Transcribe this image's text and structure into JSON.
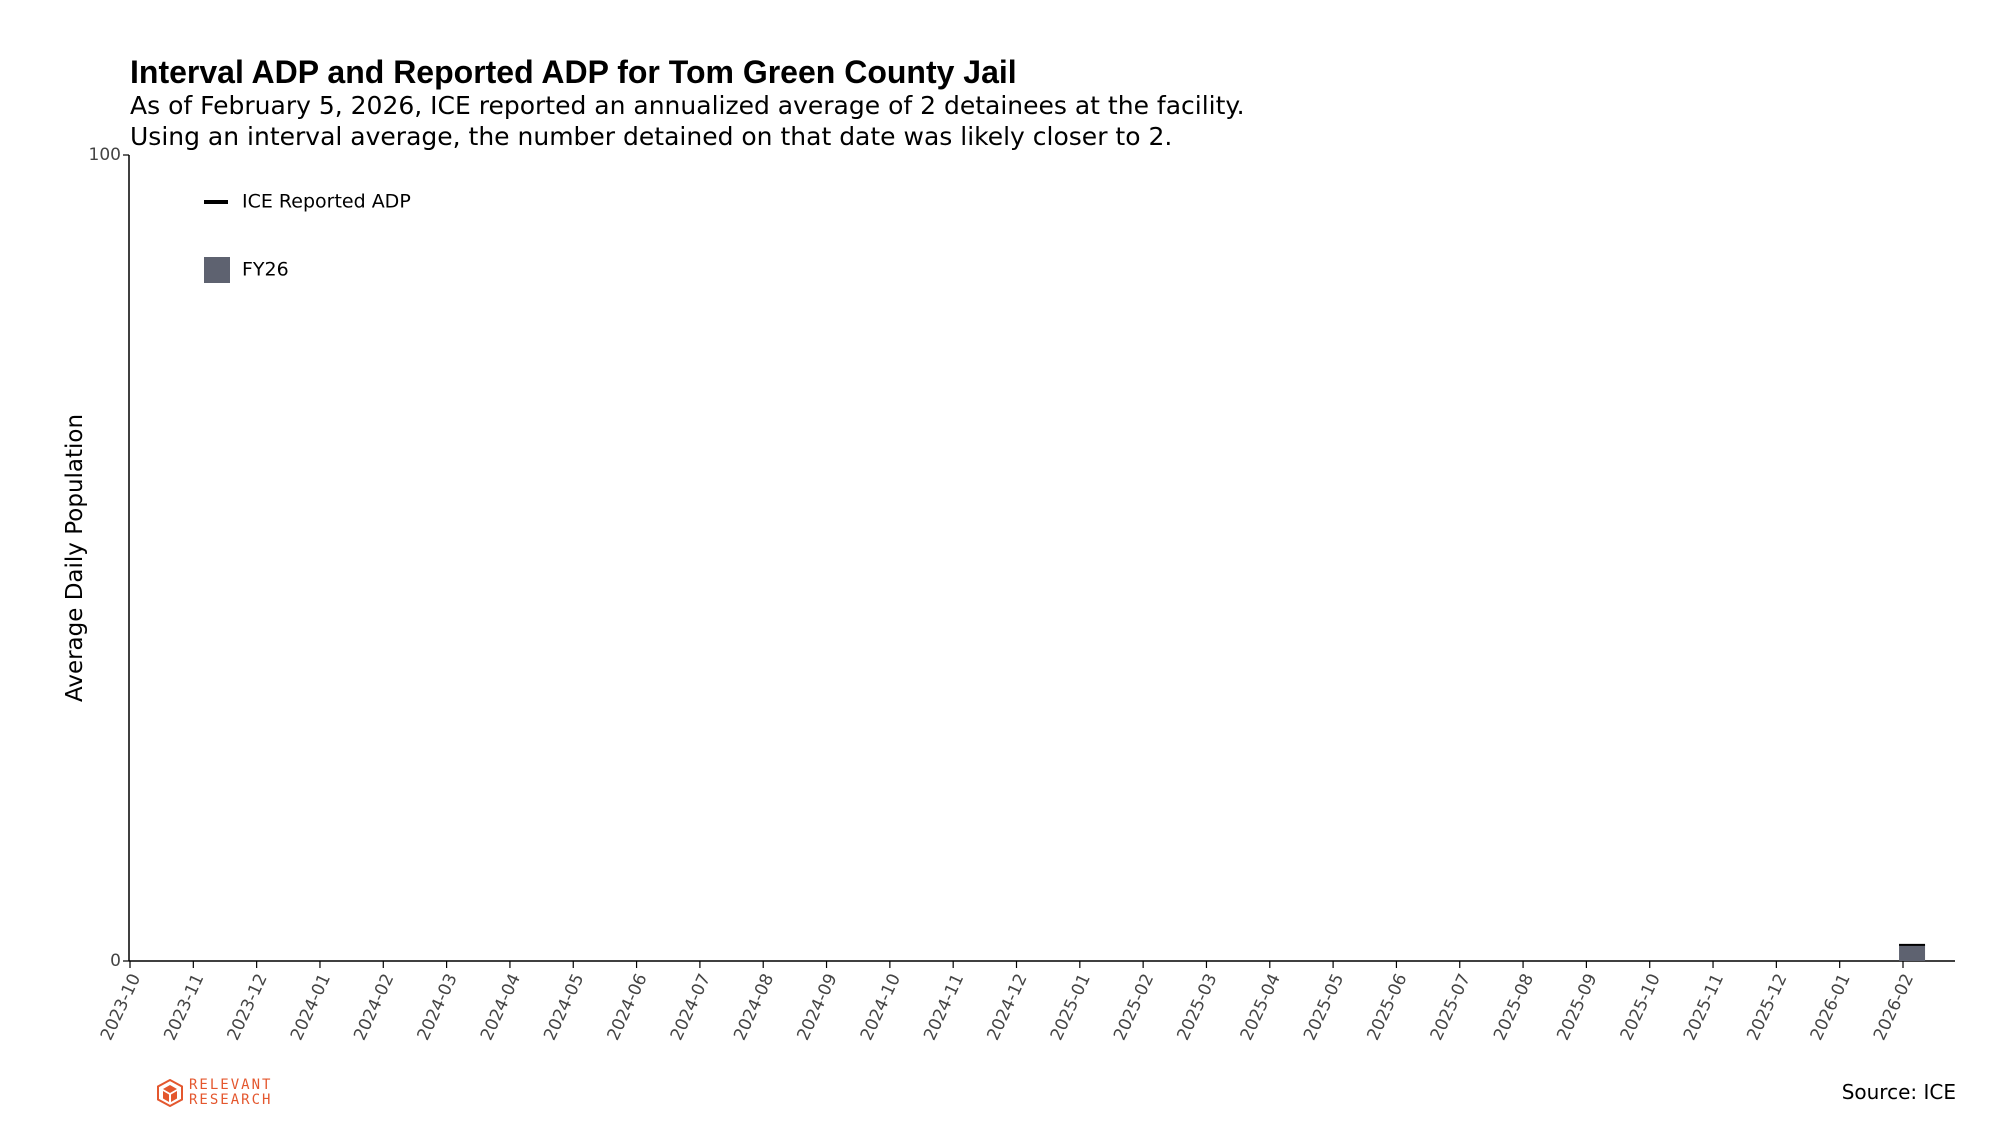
{
  "header": {
    "title": "Interval ADP and Reported ADP for Tom Green County Jail",
    "subtitle_line1": "As of February 5, 2026, ICE reported an annualized average of 2 detainees at the facility.",
    "subtitle_line2": "Using an interval average, the number detained on that date was likely closer to 2."
  },
  "footer": {
    "logo_line1": "RELEVANT",
    "logo_line2": "RESEARCH",
    "source": "Source: ICE"
  },
  "chart_data": {
    "type": "bar",
    "ylabel": "Average Daily Population",
    "xlabel": "",
    "ylim": [
      0,
      100
    ],
    "yticks": [
      0,
      100
    ],
    "x_tick_labels": [
      "2023-10",
      "2023-11",
      "2023-12",
      "2024-01",
      "2024-02",
      "2024-03",
      "2024-04",
      "2024-05",
      "2024-06",
      "2024-07",
      "2024-08",
      "2024-09",
      "2024-10",
      "2024-11",
      "2024-12",
      "2025-01",
      "2025-02",
      "2025-03",
      "2025-04",
      "2025-05",
      "2025-06",
      "2025-07",
      "2025-08",
      "2025-09",
      "2025-10",
      "2025-11",
      "2025-12",
      "2026-01",
      "2026-02"
    ],
    "legend": {
      "placement": "top-left",
      "items": [
        {
          "label": "ICE Reported ADP",
          "kind": "line",
          "color": "#000000"
        },
        {
          "label": "FY26",
          "kind": "patch",
          "color": "#5e6270"
        }
      ]
    },
    "series": [
      {
        "name": "FY26",
        "kind": "bar",
        "color": "#5e6270",
        "points": [
          {
            "date": "2026-02-05",
            "value": 2
          }
        ]
      },
      {
        "name": "ICE Reported ADP",
        "kind": "line",
        "color": "#000000",
        "points": [
          {
            "date": "2026-02-05",
            "value": 2
          }
        ]
      }
    ],
    "grid": false
  }
}
